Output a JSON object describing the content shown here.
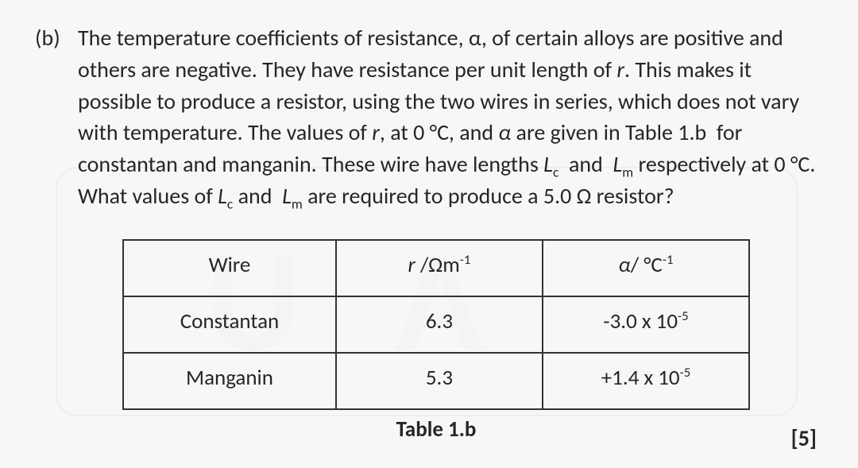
{
  "question": {
    "label": "(b)",
    "text_html": "The temperature coefficients of resistance, α, of certain alloys are positive and others are negative. They have resistance per unit length of <i class=\"var\">r</i>. This makes it possible to produce a resistor, using the two wires in series, which does not vary with temperature. The values of <i class=\"var\">r</i>, at 0 °C, and <i class=\"var\">α</i> are given in Table 1.b&nbsp; for constantan and manganin. These wire have lengths <i class=\"var\">L</i><sub>c</sub>&nbsp; and &nbsp;<i class=\"var\">L</i><sub>m</sub> respectively at 0 °C. What values of <i class=\"var\">L</i><sub>c</sub> and &nbsp;<i class=\"var\">L</i><sub>m</sub> are required to produce a 5.0 Ω resistor?"
  },
  "table": {
    "caption": "Table 1.b",
    "columns": {
      "c1": "Wire",
      "c2_html": "<i class=\"var\">r</i> /Ωm<sup>-1</sup>",
      "c3_html": "<i class=\"var\">α</i>/ °C<sup>-1</sup>"
    },
    "rows": [
      {
        "wire": "Constantan",
        "r": "6.3",
        "alpha_html": "-3.0 x 10<sup>-5</sup>"
      },
      {
        "wire": "Manganin",
        "r": "5.3",
        "alpha_html": "+1.4 x 10<sup>-5</sup>"
      }
    ],
    "col_widths": [
      "34%",
      "33%",
      "33%"
    ],
    "border_color": "#333333",
    "cell_font_size_pt": 20
  },
  "marks": "[5]",
  "style": {
    "page_bg": "#f7f7f7",
    "text_color": "#262626",
    "body_font_size_pt": 21,
    "body_line_height": 1.42,
    "watermark_text": "U  A",
    "watermark_color": "#ededed"
  }
}
